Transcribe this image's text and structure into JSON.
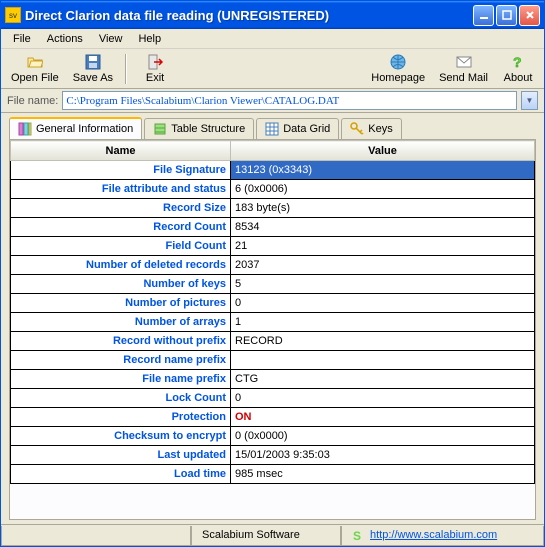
{
  "window": {
    "title": "Direct Clarion data file reading (UNREGISTERED)"
  },
  "menu": {
    "items": [
      "File",
      "Actions",
      "View",
      "Help"
    ]
  },
  "toolbar": {
    "open": "Open File",
    "saveas": "Save As",
    "exit": "Exit",
    "homepage": "Homepage",
    "sendmail": "Send Mail",
    "about": "About"
  },
  "filebar": {
    "label": "File name:",
    "value": "C:\\Program Files\\Scalabium\\Clarion Viewer\\CATALOG.DAT"
  },
  "tabs": {
    "general": "General Information",
    "structure": "Table Structure",
    "grid": "Data Grid",
    "keys": "Keys"
  },
  "table": {
    "columns": {
      "name": "Name",
      "value": "Value"
    },
    "rows": [
      {
        "name": "File Signature",
        "value": "13123 (0x3343)",
        "selected": true
      },
      {
        "name": "File attribute and status",
        "value": "6 (0x0006)"
      },
      {
        "name": "Record Size",
        "value": "183 byte(s)"
      },
      {
        "name": "Record Count",
        "value": "8534"
      },
      {
        "name": "Field Count",
        "value": "21"
      },
      {
        "name": "Number of deleted records",
        "value": "2037"
      },
      {
        "name": "Number of keys",
        "value": "5"
      },
      {
        "name": "Number of pictures",
        "value": "0"
      },
      {
        "name": "Number of arrays",
        "value": "1"
      },
      {
        "name": "Record without prefix",
        "value": "RECORD"
      },
      {
        "name": "Record name prefix",
        "value": ""
      },
      {
        "name": "File name prefix",
        "value": "CTG"
      },
      {
        "name": "Lock Count",
        "value": "0"
      },
      {
        "name": "Protection",
        "value": "ON",
        "red": true
      },
      {
        "name": "Checksum to encrypt",
        "value": "0 (0x0000)"
      },
      {
        "name": "Last updated",
        "value": "15/01/2003 9:35:03"
      },
      {
        "name": "Load time",
        "value": "985 msec"
      }
    ]
  },
  "statusbar": {
    "software": "Scalabium Software",
    "url": "http://www.scalabium.com"
  },
  "colors": {
    "titlebar_bg": "#0054e3",
    "accent_blue": "#316ac5",
    "link_blue": "#0054e3",
    "bg": "#ece9d8",
    "red": "#d00000",
    "border": "#aca899",
    "tab_active_top": "#ffb700"
  }
}
